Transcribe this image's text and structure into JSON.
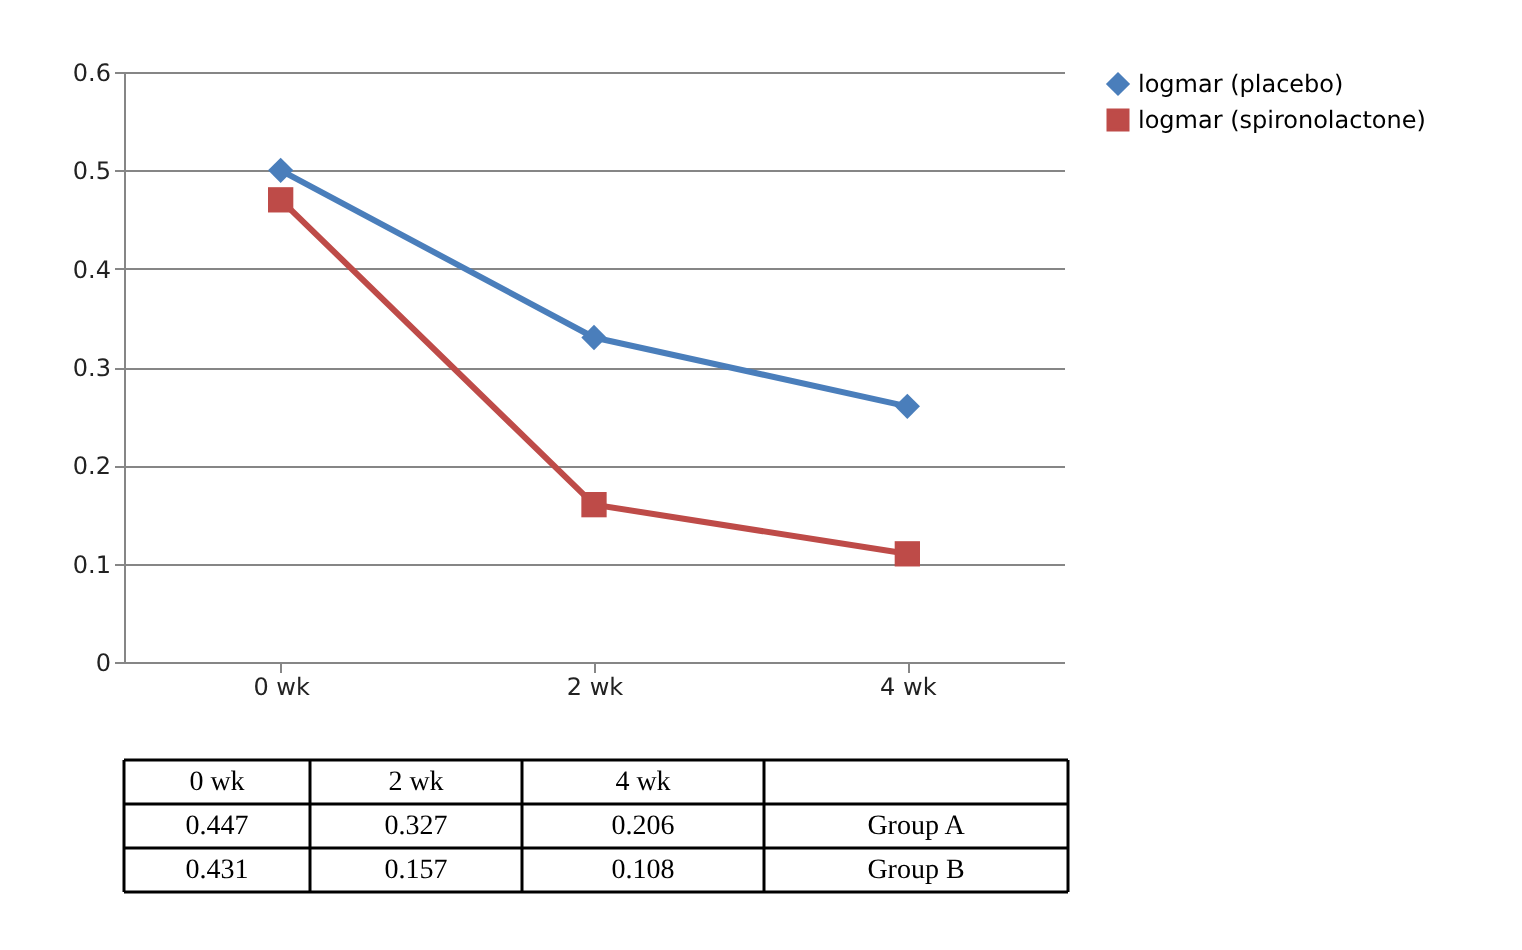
{
  "chart_data": {
    "type": "line",
    "categories": [
      "0 wk",
      "2 wk",
      "4 wk"
    ],
    "series": [
      {
        "name": "logmar (placebo)",
        "color": "#4a7ebb",
        "marker": "diamond",
        "values": [
          0.5,
          0.33,
          0.26
        ]
      },
      {
        "name": "logmar (spironolactone)",
        "color": "#be4b48",
        "marker": "square",
        "values": [
          0.47,
          0.16,
          0.11
        ]
      }
    ],
    "ylim": [
      0,
      0.6
    ],
    "yticks": [
      0,
      0.1,
      0.2,
      0.3,
      0.4,
      0.5,
      0.6
    ],
    "grid": "y",
    "legend": "top right",
    "line_style": "solid",
    "annotations": [
      "0 wk",
      "2 wk",
      "4 wk",
      "0.447",
      "0.327",
      "0.206",
      "Group A",
      "0.431",
      "0.157",
      "0.108",
      "Group B"
    ]
  }
}
